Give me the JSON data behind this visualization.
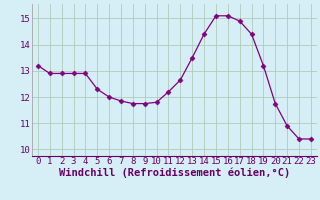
{
  "x": [
    0,
    1,
    2,
    3,
    4,
    5,
    6,
    7,
    8,
    9,
    10,
    11,
    12,
    13,
    14,
    15,
    16,
    17,
    18,
    19,
    20,
    21,
    22,
    23
  ],
  "y": [
    13.2,
    12.9,
    12.9,
    12.9,
    12.9,
    12.3,
    12.0,
    11.85,
    11.75,
    11.75,
    11.8,
    12.2,
    12.65,
    13.5,
    14.4,
    15.1,
    15.1,
    14.9,
    14.4,
    13.2,
    11.75,
    10.9,
    10.4,
    10.4
  ],
  "line_color": "#800080",
  "marker": "D",
  "marker_size": 2.5,
  "linewidth": 0.9,
  "xlabel": "Windchill (Refroidissement éolien,°C)",
  "xlabel_fontsize": 7.5,
  "yticks": [
    10,
    11,
    12,
    13,
    14,
    15
  ],
  "xticks": [
    0,
    1,
    2,
    3,
    4,
    5,
    6,
    7,
    8,
    9,
    10,
    11,
    12,
    13,
    14,
    15,
    16,
    17,
    18,
    19,
    20,
    21,
    22,
    23
  ],
  "xlim": [
    -0.5,
    23.5
  ],
  "ylim": [
    9.75,
    15.55
  ],
  "bg_color": "#d6eef5",
  "grid_color": "#b0ccbb",
  "tick_fontsize": 6.5,
  "figsize": [
    3.2,
    2.0
  ],
  "dpi": 100
}
